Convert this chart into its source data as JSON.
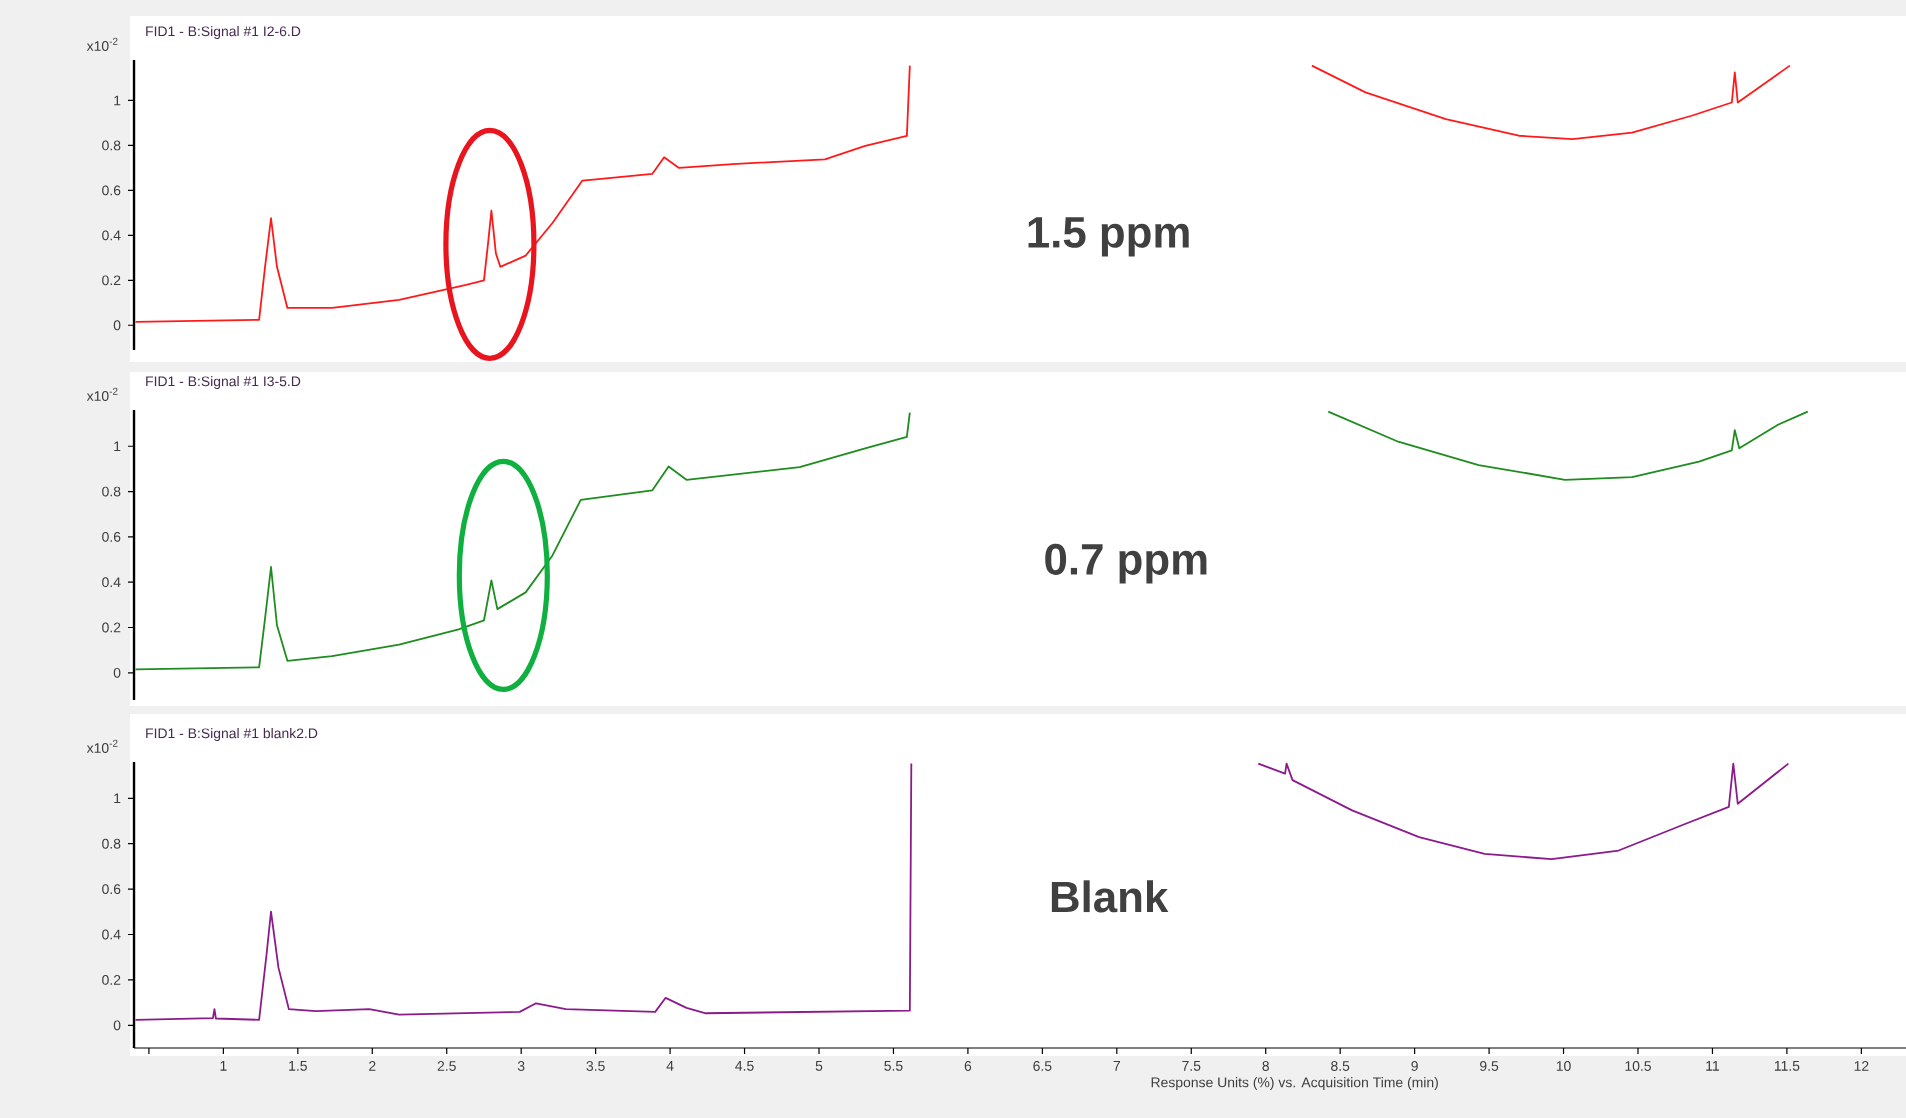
{
  "chart_data": [
    {
      "type": "line",
      "title": "FID1 - B:Signal #1 I2-6.D",
      "ylabel": "x10$^{-2}$",
      "annotations": [
        "1.5 ppm"
      ],
      "xlim": [
        0.4,
        12.3
      ],
      "ylim": [
        -0.11,
        1.18
      ],
      "yticks": [
        0,
        0.2,
        0.4,
        0.6,
        0.8,
        1
      ],
      "tick_labels": "y",
      "series": [
        {
          "color": "#ff1a1a",
          "x": [
            0.41,
            1.24,
            1.28,
            1.32,
            1.36,
            1.43,
            1.73,
            2.18,
            2.63,
            2.75,
            2.78,
            2.8,
            2.83,
            2.86,
            3.03,
            3.21,
            3.41,
            3.52,
            3.88,
            3.96,
            4.06,
            4.42,
            5.04,
            5.31,
            5.59,
            5.61
          ],
          "values": [
            0.015,
            0.024,
            0.26,
            0.476,
            0.26,
            0.077,
            0.077,
            0.113,
            0.18,
            0.2,
            0.38,
            0.51,
            0.32,
            0.26,
            0.31,
            0.455,
            0.643,
            0.65,
            0.673,
            0.747,
            0.7,
            0.717,
            0.738,
            0.798,
            0.842,
            1.155
          ]
        },
        {
          "color": "#ff1a1a",
          "x": [
            8.31,
            8.67,
            9.21,
            9.7,
            10.06,
            10.46,
            10.86,
            11.13,
            11.15,
            11.17,
            11.52
          ],
          "values": [
            1.155,
            1.036,
            0.917,
            0.843,
            0.828,
            0.857,
            0.932,
            0.991,
            1.125,
            0.991,
            1.155
          ]
        }
      ]
    },
    {
      "type": "line",
      "title": "FID1 - B:Signal #1 I3-5.D",
      "ylabel": "x10$^{-2}$",
      "annotations": [
        "0.7 ppm"
      ],
      "xlim": [
        0.4,
        12.3
      ],
      "ylim": [
        -0.12,
        1.16
      ],
      "yticks": [
        0,
        0.2,
        0.4,
        0.6,
        0.8,
        1
      ],
      "tick_labels": "y",
      "series": [
        {
          "color": "#1e8c1e",
          "x": [
            0.41,
            1.24,
            1.28,
            1.32,
            1.36,
            1.43,
            1.73,
            2.18,
            2.58,
            2.75,
            2.8,
            2.84,
            3.03,
            3.21,
            3.4,
            3.88,
            3.99,
            4.11,
            4.87,
            5.31,
            5.59,
            5.61
          ],
          "values": [
            0.015,
            0.024,
            0.24,
            0.467,
            0.21,
            0.053,
            0.074,
            0.124,
            0.192,
            0.231,
            0.408,
            0.281,
            0.355,
            0.518,
            0.763,
            0.805,
            0.911,
            0.852,
            0.908,
            0.991,
            1.041,
            1.148
          ]
        },
        {
          "color": "#1e8c1e",
          "x": [
            8.42,
            8.89,
            9.43,
            10.01,
            10.46,
            10.91,
            11.13,
            11.15,
            11.18,
            11.44,
            11.64
          ],
          "values": [
            1.153,
            1.02,
            0.917,
            0.852,
            0.864,
            0.932,
            0.982,
            1.071,
            0.991,
            1.095,
            1.153
          ]
        }
      ]
    },
    {
      "type": "line",
      "title": "FID1 - B:Signal #1 blank2.D",
      "ylabel": "x10$^{-2}$",
      "xlabel": "Response Units (%) vs. Acquisition Time (min)",
      "annotations": [
        "Blank"
      ],
      "xlim": [
        0.4,
        12.3
      ],
      "ylim": [
        -0.1,
        1.16
      ],
      "yticks": [
        0,
        0.2,
        0.4,
        0.6,
        0.8,
        1
      ],
      "xticks": [
        {
          "value": 0.5,
          "label": null
        },
        1,
        1.5,
        2,
        2.5,
        3,
        3.5,
        4,
        4.5,
        5,
        5.5,
        6,
        6.5,
        7,
        7.5,
        8,
        8.5,
        9,
        9.5,
        10,
        10.5,
        11,
        11.5,
        12
      ],
      "series": [
        {
          "color": "#8b1a8b",
          "x": [
            0.41,
            0.93,
            0.94,
            0.95,
            1.24,
            1.29,
            1.32,
            1.37,
            1.44,
            1.62,
            1.98,
            2.18,
            2.99,
            3.1,
            3.3,
            3.9,
            3.97,
            4.11,
            4.24,
            5.61,
            5.62
          ],
          "values": [
            0.024,
            0.032,
            0.071,
            0.03,
            0.024,
            0.313,
            0.501,
            0.254,
            0.071,
            0.062,
            0.071,
            0.047,
            0.059,
            0.097,
            0.071,
            0.059,
            0.121,
            0.077,
            0.053,
            0.065,
            1.153
          ]
        },
        {
          "color": "#8b1a8b",
          "x": [
            7.95,
            8.13,
            8.14,
            8.18,
            8.58,
            9.03,
            9.47,
            9.92,
            10.37,
            10.82,
            11.11,
            11.14,
            11.17,
            11.51
          ],
          "values": [
            1.153,
            1.109,
            1.153,
            1.08,
            0.947,
            0.829,
            0.755,
            0.732,
            0.77,
            0.888,
            0.962,
            1.153,
            0.976,
            1.153
          ]
        }
      ]
    }
  ]
}
